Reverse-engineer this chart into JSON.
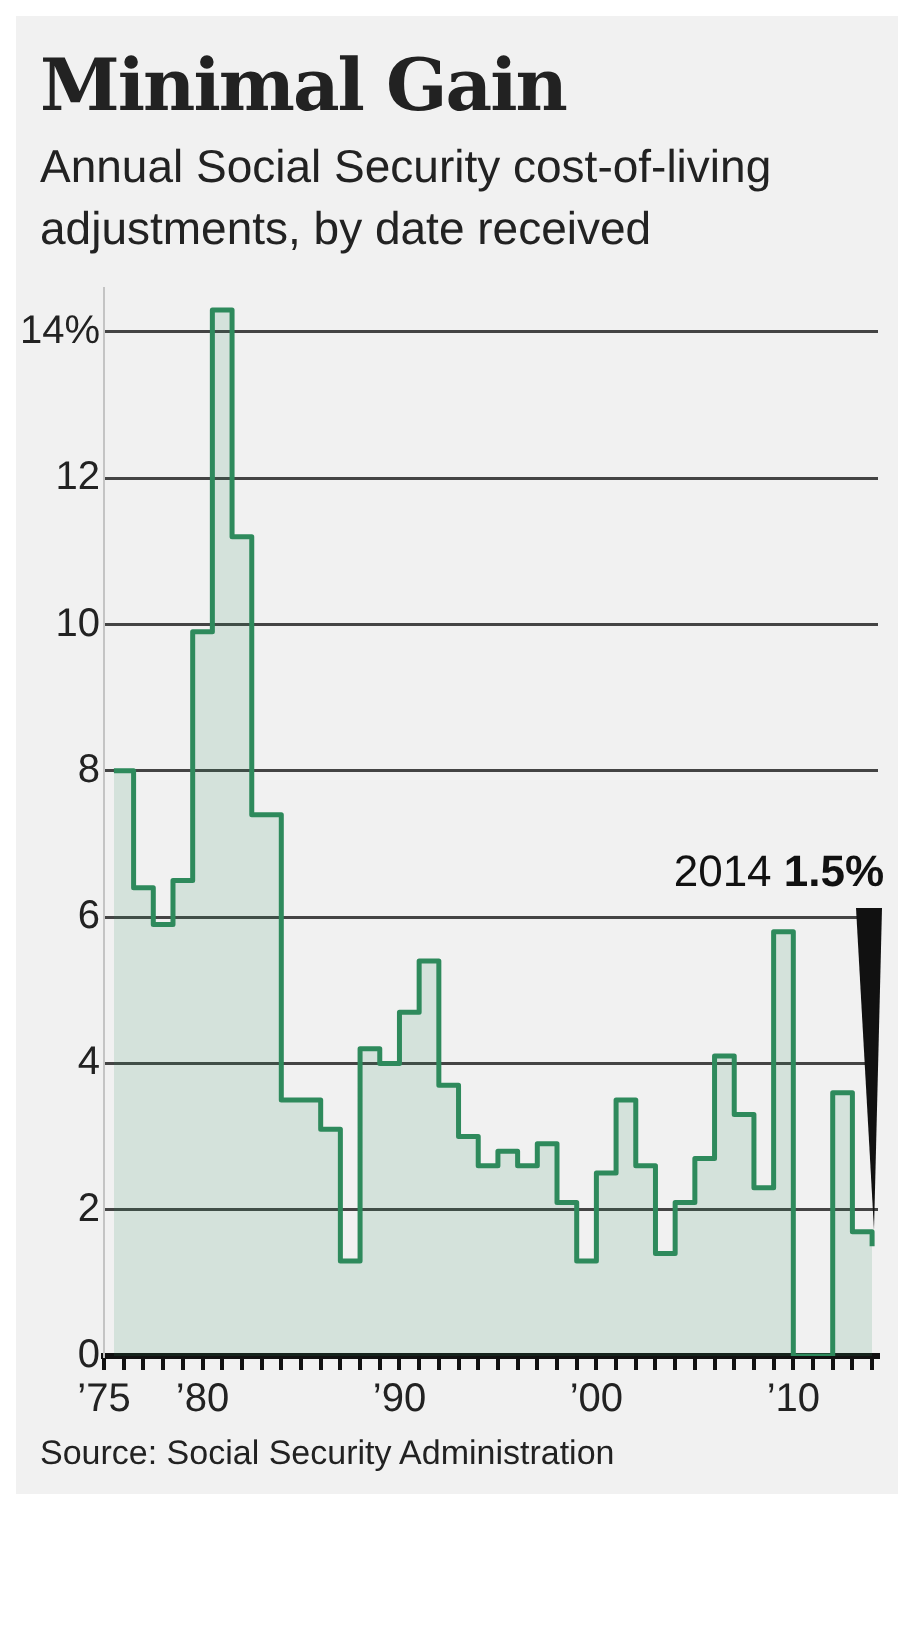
{
  "chart_data": {
    "type": "step",
    "title": "Minimal Gain",
    "subtitle": "Annual Social Security cost-of-living adjustments, by date received",
    "x": [
      1975.5,
      1976.5,
      1977.5,
      1978.5,
      1979.5,
      1980.5,
      1981.5,
      1982.5,
      1984,
      1985,
      1986,
      1987,
      1988,
      1989,
      1990,
      1991,
      1992,
      1993,
      1994,
      1995,
      1996,
      1997,
      1998,
      1999,
      2000,
      2001,
      2002,
      2003,
      2004,
      2005,
      2006,
      2007,
      2008,
      2009,
      2010,
      2011,
      2012,
      2013,
      2014
    ],
    "series": [
      {
        "color": "#2e8a5c",
        "values": [
          8.0,
          6.4,
          5.9,
          6.5,
          9.9,
          14.3,
          11.2,
          7.4,
          3.5,
          3.5,
          3.1,
          1.3,
          4.2,
          4.0,
          4.7,
          5.4,
          3.7,
          3.0,
          2.6,
          2.8,
          2.6,
          2.9,
          2.1,
          1.3,
          2.5,
          3.5,
          2.6,
          1.4,
          2.1,
          2.7,
          4.1,
          3.3,
          2.3,
          5.8,
          0,
          0,
          3.6,
          1.7,
          1.5
        ]
      }
    ],
    "xlim": [
      1975,
      2014.3
    ],
    "xticks": [
      {
        "value": 1975,
        "label": "’75"
      },
      {
        "value": 1976,
        "label": null
      },
      {
        "value": 1977,
        "label": null
      },
      {
        "value": 1978,
        "label": null
      },
      {
        "value": 1979,
        "label": null
      },
      {
        "value": 1980,
        "label": "’80"
      },
      {
        "value": 1981,
        "label": null
      },
      {
        "value": 1982,
        "label": null
      },
      {
        "value": 1983,
        "label": null
      },
      {
        "value": 1984,
        "label": null
      },
      {
        "value": 1985,
        "label": null
      },
      {
        "value": 1986,
        "label": null
      },
      {
        "value": 1987,
        "label": null
      },
      {
        "value": 1988,
        "label": null
      },
      {
        "value": 1989,
        "label": null
      },
      {
        "value": 1990,
        "label": "’90"
      },
      {
        "value": 1991,
        "label": null
      },
      {
        "value": 1992,
        "label": null
      },
      {
        "value": 1993,
        "label": null
      },
      {
        "value": 1994,
        "label": null
      },
      {
        "value": 1995,
        "label": null
      },
      {
        "value": 1996,
        "label": null
      },
      {
        "value": 1997,
        "label": null
      },
      {
        "value": 1998,
        "label": null
      },
      {
        "value": 1999,
        "label": null
      },
      {
        "value": 2000,
        "label": "’00"
      },
      {
        "value": 2001,
        "label": null
      },
      {
        "value": 2002,
        "label": null
      },
      {
        "value": 2003,
        "label": null
      },
      {
        "value": 2004,
        "label": null
      },
      {
        "value": 2005,
        "label": null
      },
      {
        "value": 2006,
        "label": null
      },
      {
        "value": 2007,
        "label": null
      },
      {
        "value": 2008,
        "label": null
      },
      {
        "value": 2009,
        "label": null
      },
      {
        "value": 2010,
        "label": "’10"
      },
      {
        "value": 2011,
        "label": null
      },
      {
        "value": 2012,
        "label": null
      },
      {
        "value": 2013,
        "label": null
      },
      {
        "value": 2014,
        "label": null
      }
    ],
    "ylim": [
      0,
      14.6
    ],
    "yticks": [
      0,
      2,
      4,
      6,
      8,
      10,
      12,
      {
        "value": 14,
        "label": "14%"
      }
    ],
    "grid": "y",
    "legend": false,
    "marker": "none",
    "line_style": "solid",
    "annotations": [
      {
        "text": "2014 1.5%",
        "x": 2014,
        "y": 1.5
      },
      "Source: Social Security Administration"
    ]
  }
}
